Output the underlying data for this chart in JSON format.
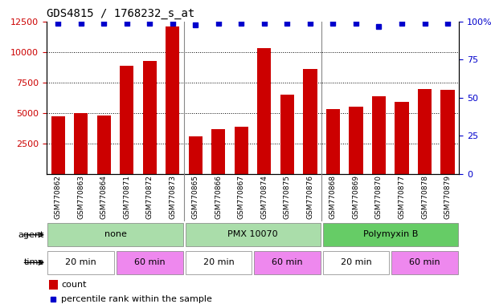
{
  "title": "GDS4815 / 1768232_s_at",
  "samples": [
    "GSM770862",
    "GSM770863",
    "GSM770864",
    "GSM770871",
    "GSM770872",
    "GSM770873",
    "GSM770865",
    "GSM770866",
    "GSM770867",
    "GSM770874",
    "GSM770875",
    "GSM770876",
    "GSM770868",
    "GSM770869",
    "GSM770870",
    "GSM770877",
    "GSM770878",
    "GSM770879"
  ],
  "counts": [
    4700,
    5000,
    4800,
    8900,
    9300,
    12100,
    3100,
    3700,
    3900,
    10300,
    6500,
    8600,
    5300,
    5500,
    6400,
    5900,
    7000,
    6900
  ],
  "percentiles": [
    99,
    99,
    99,
    99,
    99,
    99,
    98,
    99,
    99,
    99,
    99,
    99,
    99,
    99,
    97,
    99,
    99,
    99
  ],
  "bar_color": "#cc0000",
  "dot_color": "#0000cc",
  "ylim_left": [
    0,
    12500
  ],
  "ylim_right": [
    0,
    100
  ],
  "yticks_left": [
    2500,
    5000,
    7500,
    10000,
    12500
  ],
  "yticks_right": [
    0,
    25,
    50,
    75,
    100
  ],
  "grid_lines": [
    2500,
    5000,
    7500,
    10000
  ],
  "agent_groups": [
    {
      "label": "none",
      "start": 0,
      "end": 6
    },
    {
      "label": "PMX 10070",
      "start": 6,
      "end": 12
    },
    {
      "label": "Polymyxin B",
      "start": 12,
      "end": 18
    }
  ],
  "agent_colors": [
    "#aaddaa",
    "#aaddaa",
    "#66cc66"
  ],
  "time_groups": [
    {
      "label": "20 min",
      "start": 0,
      "end": 3
    },
    {
      "label": "60 min",
      "start": 3,
      "end": 6
    },
    {
      "label": "20 min",
      "start": 6,
      "end": 9
    },
    {
      "label": "60 min",
      "start": 9,
      "end": 12
    },
    {
      "label": "20 min",
      "start": 12,
      "end": 15
    },
    {
      "label": "60 min",
      "start": 15,
      "end": 18
    }
  ],
  "time_colors": {
    "20 min": "#ffffff",
    "60 min": "#ee88ee"
  },
  "legend_count_color": "#cc0000",
  "legend_pct_color": "#0000cc",
  "bg_color": "#ffffff",
  "tick_label_color_left": "#cc0000",
  "tick_label_color_right": "#0000cc",
  "xtick_bg_color": "#cccccc",
  "group_sep_color": "#888888"
}
